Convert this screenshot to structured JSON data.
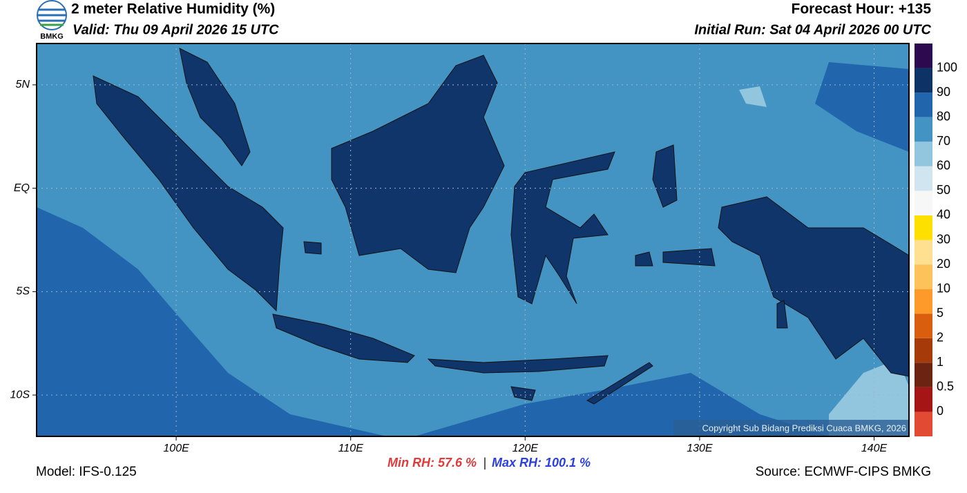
{
  "header": {
    "title": "2 meter Relative Humidity (%)",
    "valid": "Valid: Thu 09 April 2026 15 UTC",
    "forecast_hour": "Forecast Hour: +135",
    "initial_run": "Initial Run: Sat 04 April 2026 00 UTC",
    "logo_text": "BMKG"
  },
  "map": {
    "lonlim": [
      92,
      142
    ],
    "latlim": [
      -12,
      7
    ],
    "xticks": [
      {
        "value": 100,
        "label": "100E"
      },
      {
        "value": 110,
        "label": "110E"
      },
      {
        "value": 120,
        "label": "120E"
      },
      {
        "value": 130,
        "label": "130E"
      },
      {
        "value": 140,
        "label": "140E"
      }
    ],
    "yticks": [
      {
        "value": 5,
        "label": "5N"
      },
      {
        "value": 0,
        "label": "EQ"
      },
      {
        "value": -5,
        "label": "5S"
      },
      {
        "value": -10,
        "label": "10S"
      }
    ],
    "copyright": "Copyright Sub Bidang Prediksi Cuaca BMKG, 2026"
  },
  "colorbar": {
    "levels": [
      0,
      0.5,
      1,
      2,
      5,
      10,
      20,
      30,
      40,
      50,
      60,
      70,
      80,
      90,
      100
    ],
    "colors": [
      "#e34a33",
      "#a51515",
      "#6b2412",
      "#a63a08",
      "#d95f0e",
      "#fd9a2a",
      "#fdc35a",
      "#fee090",
      "#fde000",
      "#f7f7f7",
      "#d1e5f0",
      "#92c5de",
      "#4393c3",
      "#2166ac",
      "#0d3266",
      "#2d0a4e"
    ]
  },
  "footer": {
    "model": "Model: IFS-0.125",
    "min_rh": "Min RH:  57.6 %",
    "separator": "|",
    "max_rh": "Max RH: 100.1 %",
    "source": "Source: ECMWF-CIPS BMKG"
  }
}
